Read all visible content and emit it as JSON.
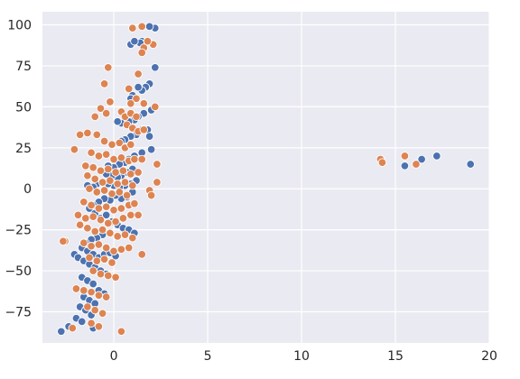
{
  "chart_data": {
    "type": "scatter",
    "title": "",
    "xlabel": "",
    "ylabel": "",
    "xlim": [
      -3.8,
      20.0
    ],
    "ylim": [
      -94,
      108
    ],
    "x_ticks": [
      0,
      5,
      10,
      15,
      20
    ],
    "x_tick_labels": [
      "0",
      "5",
      "10",
      "15",
      "20"
    ],
    "y_ticks": [
      -75,
      -50,
      -25,
      0,
      25,
      50,
      75,
      100
    ],
    "y_tick_labels": [
      "−75",
      "−50",
      "−25",
      "0",
      "25",
      "50",
      "75",
      "100"
    ],
    "grid": true,
    "legend": "none",
    "colors": {
      "background": "#eaeaf2",
      "grid": "#ffffff",
      "series_1": "#4c72b0",
      "series_2": "#dd8452",
      "marker_edge": "#ffffff"
    },
    "series": [
      {
        "color": "#4c72b0",
        "points": [
          [
            2.2,
            98
          ],
          [
            1.9,
            99
          ],
          [
            1.5,
            90
          ],
          [
            1.4,
            89
          ],
          [
            0.9,
            88
          ],
          [
            1.1,
            90
          ],
          [
            2.2,
            74
          ],
          [
            1.9,
            64
          ],
          [
            1.7,
            62
          ],
          [
            1.5,
            60
          ],
          [
            1.3,
            62
          ],
          [
            1.0,
            57
          ],
          [
            0.9,
            55
          ],
          [
            2.0,
            48
          ],
          [
            1.6,
            46
          ],
          [
            1.3,
            44
          ],
          [
            1.1,
            42
          ],
          [
            0.8,
            41
          ],
          [
            0.4,
            40
          ],
          [
            0.2,
            41
          ],
          [
            1.8,
            36
          ],
          [
            1.5,
            36
          ],
          [
            1.2,
            33
          ],
          [
            0.9,
            32
          ],
          [
            0.6,
            30
          ],
          [
            0.4,
            29
          ],
          [
            1.9,
            32
          ],
          [
            2.0,
            24
          ],
          [
            1.5,
            22
          ],
          [
            1.1,
            20
          ],
          [
            0.8,
            18
          ],
          [
            0.6,
            16
          ],
          [
            0.3,
            15
          ],
          [
            0.0,
            13
          ],
          [
            -0.3,
            14
          ],
          [
            1.0,
            12
          ],
          [
            0.7,
            10
          ],
          [
            0.4,
            8
          ],
          [
            0.2,
            7
          ],
          [
            -0.1,
            8
          ],
          [
            -0.4,
            9
          ],
          [
            1.2,
            5
          ],
          [
            0.9,
            3
          ],
          [
            0.6,
            2
          ],
          [
            0.3,
            1
          ],
          [
            0.0,
            2
          ],
          [
            -0.3,
            3
          ],
          [
            -0.6,
            4
          ],
          [
            -0.9,
            3
          ],
          [
            -1.1,
            1
          ],
          [
            -1.4,
            2
          ],
          [
            1.0,
            -2
          ],
          [
            0.7,
            -5
          ],
          [
            0.4,
            -6
          ],
          [
            0.1,
            -4
          ],
          [
            -0.2,
            -7
          ],
          [
            -0.5,
            -6
          ],
          [
            -0.8,
            -8
          ],
          [
            -1.1,
            -10
          ],
          [
            -1.3,
            -12
          ],
          [
            -1.0,
            -15
          ],
          [
            -0.7,
            -18
          ],
          [
            -0.4,
            -16
          ],
          [
            -0.1,
            -20
          ],
          [
            0.2,
            -22
          ],
          [
            0.5,
            -24
          ],
          [
            0.8,
            -25
          ],
          [
            1.1,
            -27
          ],
          [
            -0.6,
            -28
          ],
          [
            -0.9,
            -30
          ],
          [
            -1.2,
            -31
          ],
          [
            -1.5,
            -33
          ],
          [
            -1.7,
            -36
          ],
          [
            -1.4,
            -38
          ],
          [
            -1.1,
            -40
          ],
          [
            -0.8,
            -42
          ],
          [
            -0.5,
            -40
          ],
          [
            -0.2,
            -39
          ],
          [
            0.1,
            -41
          ],
          [
            -2.1,
            -40
          ],
          [
            -1.9,
            -42
          ],
          [
            -1.6,
            -44
          ],
          [
            -1.3,
            -46
          ],
          [
            -1.0,
            -48
          ],
          [
            -0.7,
            -50
          ],
          [
            -0.4,
            -52
          ],
          [
            -1.7,
            -54
          ],
          [
            -1.4,
            -56
          ],
          [
            -1.1,
            -58
          ],
          [
            -0.8,
            -62
          ],
          [
            -0.5,
            -64
          ],
          [
            -1.6,
            -66
          ],
          [
            -1.3,
            -68
          ],
          [
            -1.0,
            -70
          ],
          [
            -1.8,
            -72
          ],
          [
            -1.5,
            -74
          ],
          [
            -1.2,
            -77
          ],
          [
            -2.0,
            -79
          ],
          [
            -1.7,
            -81
          ],
          [
            -2.4,
            -84
          ],
          [
            -1.1,
            -85
          ],
          [
            -2.8,
            -87
          ],
          [
            15.5,
            14
          ],
          [
            16.4,
            18
          ],
          [
            17.2,
            20
          ],
          [
            19.0,
            15
          ]
        ]
      },
      {
        "color": "#dd8452",
        "points": [
          [
            1.0,
            98
          ],
          [
            1.5,
            99
          ],
          [
            2.1,
            88
          ],
          [
            1.6,
            86
          ],
          [
            1.5,
            83
          ],
          [
            1.8,
            90
          ],
          [
            -0.3,
            74
          ],
          [
            1.3,
            70
          ],
          [
            0.8,
            61
          ],
          [
            1.2,
            55
          ],
          [
            0.9,
            52
          ],
          [
            1.6,
            52
          ],
          [
            2.2,
            50
          ],
          [
            -0.5,
            64
          ],
          [
            -0.2,
            53
          ],
          [
            -0.7,
            49
          ],
          [
            -0.4,
            46
          ],
          [
            -1.0,
            44
          ],
          [
            0.4,
            47
          ],
          [
            0.6,
            44
          ],
          [
            0.9,
            46
          ],
          [
            1.2,
            44
          ],
          [
            0.7,
            39
          ],
          [
            1.0,
            37
          ],
          [
            1.3,
            35
          ],
          [
            1.6,
            36
          ],
          [
            -1.8,
            33
          ],
          [
            -1.4,
            34
          ],
          [
            -0.9,
            33
          ],
          [
            -0.5,
            29
          ],
          [
            -0.1,
            27
          ],
          [
            0.3,
            28
          ],
          [
            0.6,
            25
          ],
          [
            0.9,
            27
          ],
          [
            -2.1,
            24
          ],
          [
            -1.2,
            22
          ],
          [
            -0.8,
            20
          ],
          [
            -0.4,
            21
          ],
          [
            0.0,
            18
          ],
          [
            0.4,
            19
          ],
          [
            0.8,
            17
          ],
          [
            1.1,
            18
          ],
          [
            1.5,
            18
          ],
          [
            2.3,
            15
          ],
          [
            -1.5,
            14
          ],
          [
            -1.1,
            13
          ],
          [
            -0.7,
            11
          ],
          [
            -0.3,
            12
          ],
          [
            0.1,
            10
          ],
          [
            0.5,
            11
          ],
          [
            0.9,
            9
          ],
          [
            1.3,
            10
          ],
          [
            -1.4,
            8
          ],
          [
            -1.0,
            6
          ],
          [
            -0.6,
            4
          ],
          [
            -0.2,
            5
          ],
          [
            0.2,
            3
          ],
          [
            0.6,
            4
          ],
          [
            1.0,
            2
          ],
          [
            2.3,
            4
          ],
          [
            -1.3,
            0
          ],
          [
            -0.9,
            -2
          ],
          [
            -0.5,
            -1
          ],
          [
            -0.1,
            -3
          ],
          [
            0.3,
            -2
          ],
          [
            0.7,
            -4
          ],
          [
            1.9,
            -1
          ],
          [
            2.0,
            -4
          ],
          [
            -1.6,
            -8
          ],
          [
            -1.2,
            -10
          ],
          [
            -0.8,
            -12
          ],
          [
            -0.4,
            -11
          ],
          [
            0.0,
            -13
          ],
          [
            0.4,
            -12
          ],
          [
            0.8,
            -10
          ],
          [
            1.1,
            -9
          ],
          [
            -1.9,
            -16
          ],
          [
            -1.5,
            -18
          ],
          [
            -1.1,
            -17
          ],
          [
            -0.7,
            -19
          ],
          [
            -0.3,
            -21
          ],
          [
            0.1,
            -20
          ],
          [
            0.5,
            -18
          ],
          [
            0.9,
            -16
          ],
          [
            1.3,
            -16
          ],
          [
            -1.8,
            -22
          ],
          [
            -1.4,
            -24
          ],
          [
            -1.0,
            -26
          ],
          [
            -0.6,
            -25
          ],
          [
            -0.2,
            -27
          ],
          [
            0.2,
            -29
          ],
          [
            0.6,
            -28
          ],
          [
            1.0,
            -30
          ],
          [
            -2.6,
            -32
          ],
          [
            -2.7,
            -32
          ],
          [
            -1.6,
            -33
          ],
          [
            -1.2,
            -35
          ],
          [
            -0.8,
            -34
          ],
          [
            -0.4,
            -36
          ],
          [
            0.0,
            -38
          ],
          [
            0.4,
            -37
          ],
          [
            0.8,
            -36
          ],
          [
            1.5,
            -40
          ],
          [
            -1.3,
            -42
          ],
          [
            -0.9,
            -44
          ],
          [
            -0.5,
            -43
          ],
          [
            -0.1,
            -45
          ],
          [
            -1.1,
            -50
          ],
          [
            -0.7,
            -52
          ],
          [
            -0.3,
            -53
          ],
          [
            0.1,
            -54
          ],
          [
            -2.0,
            -61
          ],
          [
            -1.6,
            -62
          ],
          [
            -1.2,
            -63
          ],
          [
            -0.8,
            -65
          ],
          [
            -0.4,
            -66
          ],
          [
            -1.4,
            -72
          ],
          [
            -1.0,
            -74
          ],
          [
            -0.6,
            -76
          ],
          [
            -1.2,
            -82
          ],
          [
            -0.8,
            -84
          ],
          [
            -2.2,
            -85
          ],
          [
            0.4,
            -87
          ],
          [
            14.2,
            18
          ],
          [
            14.3,
            16
          ],
          [
            15.5,
            20
          ],
          [
            16.1,
            15
          ]
        ]
      }
    ]
  }
}
